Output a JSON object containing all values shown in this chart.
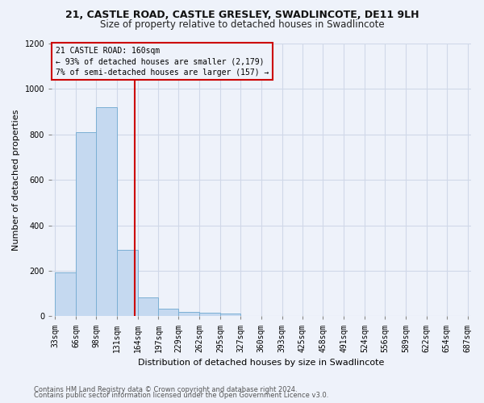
{
  "title": "21, CASTLE ROAD, CASTLE GRESLEY, SWADLINCOTE, DE11 9LH",
  "subtitle": "Size of property relative to detached houses in Swadlincote",
  "xlabel": "Distribution of detached houses by size in Swadlincote",
  "ylabel": "Number of detached properties",
  "footnote1": "Contains HM Land Registry data © Crown copyright and database right 2024.",
  "footnote2": "Contains public sector information licensed under the Open Government Licence v3.0.",
  "bin_edges": [
    33,
    66,
    98,
    131,
    164,
    197,
    229,
    262,
    295,
    327,
    360,
    393,
    425,
    458,
    491,
    524,
    556,
    589,
    622,
    654,
    687
  ],
  "bar_values": [
    193,
    810,
    921,
    291,
    83,
    35,
    20,
    15,
    11,
    0,
    0,
    0,
    0,
    0,
    0,
    0,
    0,
    0,
    0,
    0
  ],
  "bar_color": "#c5d9f0",
  "bar_edge_color": "#7bafd4",
  "subject_value": 160,
  "vline_color": "#cc0000",
  "annotation_line1": "21 CASTLE ROAD: 160sqm",
  "annotation_line2": "← 93% of detached houses are smaller (2,179)",
  "annotation_line3": "7% of semi-detached houses are larger (157) →",
  "ylim": [
    0,
    1200
  ],
  "yticks": [
    0,
    200,
    400,
    600,
    800,
    1000,
    1200
  ],
  "grid_color": "#d0d8e8",
  "bg_color": "#eef2fa",
  "title_fontsize": 9,
  "subtitle_fontsize": 8.5,
  "ylabel_fontsize": 8,
  "xlabel_fontsize": 8,
  "tick_fontsize": 7,
  "footnote_fontsize": 6
}
